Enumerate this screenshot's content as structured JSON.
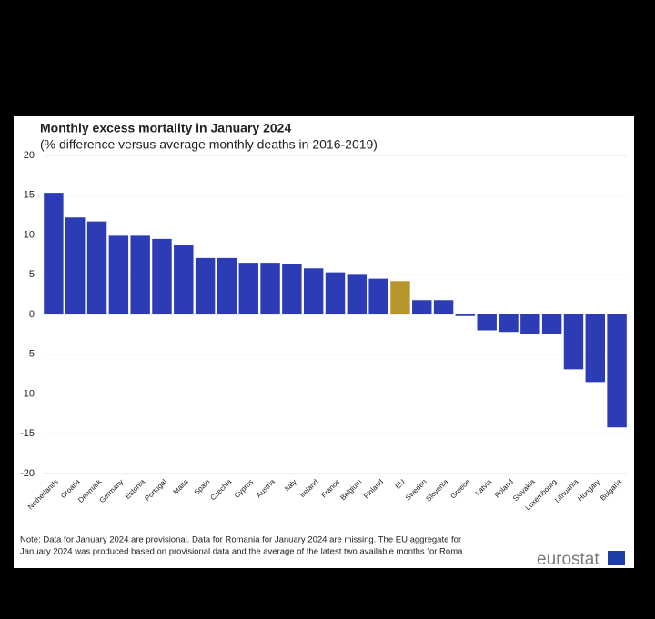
{
  "chart_data": {
    "type": "bar",
    "title": "Monthly excess mortality in January 2024",
    "subtitle": "(% difference versus average monthly deaths in 2016-2019)",
    "categories": [
      "Netherlands",
      "Croatia",
      "Denmark",
      "Germany",
      "Estonia",
      "Portugal",
      "Malta",
      "Spain",
      "Czechia",
      "Cyprus",
      "Austria",
      "Italy",
      "Ireland",
      "France",
      "Belgium",
      "Finland",
      "EU",
      "Sweden",
      "Slovenia",
      "Greece",
      "Latvia",
      "Poland",
      "Slovakia",
      "Luxembourg",
      "Lithuania",
      "Hungary",
      "Bulgaria"
    ],
    "values": [
      15.3,
      12.2,
      11.7,
      9.9,
      9.9,
      9.5,
      8.7,
      7.1,
      7.1,
      6.5,
      6.5,
      6.4,
      5.8,
      5.3,
      5.1,
      4.5,
      4.2,
      1.8,
      1.8,
      -0.2,
      -2.0,
      -2.2,
      -2.5,
      -2.5,
      -6.9,
      -8.5,
      -14.2
    ],
    "colors": [
      "#2c3cb4",
      "#2c3cb4",
      "#2c3cb4",
      "#2c3cb4",
      "#2c3cb4",
      "#2c3cb4",
      "#2c3cb4",
      "#2c3cb4",
      "#2c3cb4",
      "#2c3cb4",
      "#2c3cb4",
      "#2c3cb4",
      "#2c3cb4",
      "#2c3cb4",
      "#2c3cb4",
      "#2c3cb4",
      "#b8962e",
      "#2c3cb4",
      "#2c3cb4",
      "#2c3cb4",
      "#2c3cb4",
      "#2c3cb4",
      "#2c3cb4",
      "#2c3cb4",
      "#2c3cb4",
      "#2c3cb4",
      "#2c3cb4"
    ],
    "ylim": [
      -20,
      20
    ],
    "yticks": [
      -20,
      -15,
      -10,
      -5,
      0,
      5,
      10,
      15,
      20
    ],
    "grid": true,
    "note": [
      "Note: Data for January 2024 are provisional. Data for Romania for January 2024 are missing. The EU aggregate for",
      "January 2024 was produced based on provisional data and the average of the latest two available months for Roma"
    ],
    "logo": "eurostat"
  }
}
